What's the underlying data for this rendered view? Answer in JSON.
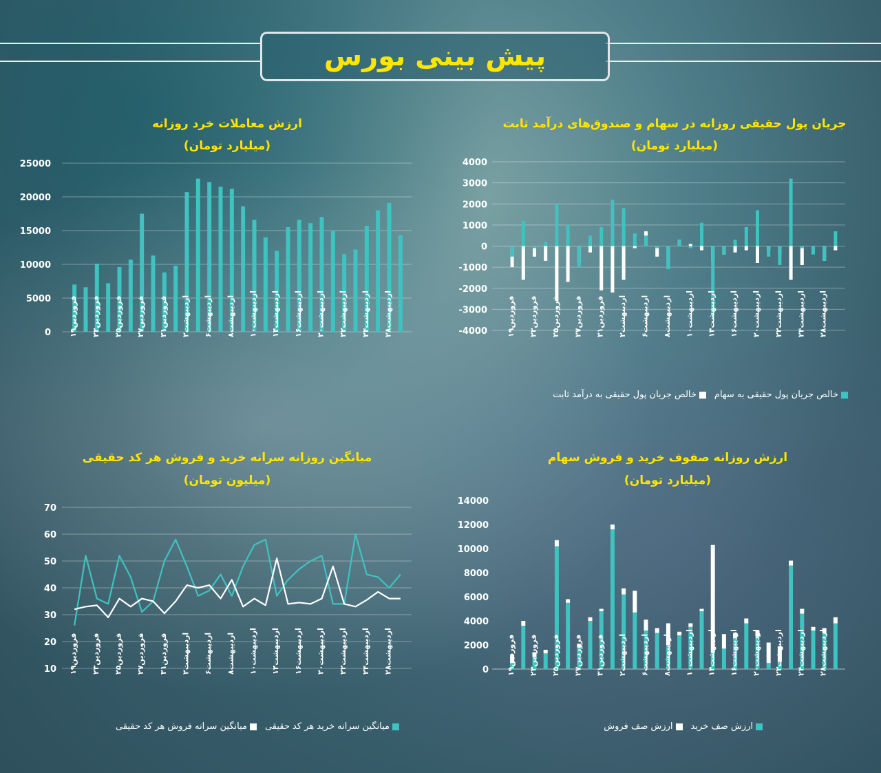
{
  "header": {
    "title": "پیش بینی بورس"
  },
  "colors": {
    "teal": "#3fc3c0",
    "white": "#ffffff",
    "title": "#ffe600"
  },
  "x_labels": [
    "فروردین۱۹",
    "فروردین۲۳",
    "فروردین۲۵",
    "فروردین۲۷",
    "فروردین۳۱",
    "اردیبهشت۲",
    "اردیبهشت۶",
    "اردیبهشت۸",
    "اردیبهشت۱۰",
    "اردیبهشت۱۴",
    "اردیبهشت۱۶",
    "اردیبهشت۲۰",
    "اردیبهشت۲۲",
    "اردیبهشت۲۴",
    "اردیبهشت۲۸"
  ],
  "chart_data": [
    {
      "id": "retail",
      "type": "bar",
      "title": "ارزش معاملات خرد روزانه",
      "subtitle": "(میلیارد تومان)",
      "ylim": [
        0,
        25000
      ],
      "yticks": [
        "0",
        "5000",
        "10000",
        "15000",
        "20000",
        "25000"
      ],
      "grid": true,
      "series": [
        {
          "name": "",
          "values": [
            7000,
            6600,
            10100,
            7200,
            9600,
            10700,
            17500,
            11300,
            8800,
            9800,
            20700,
            22700,
            22200,
            21500,
            21200,
            18600,
            16600,
            14000,
            12000,
            15500,
            16600,
            16100,
            17000,
            14900,
            11500,
            12200,
            15700,
            18000,
            19100,
            14300
          ]
        }
      ]
    },
    {
      "id": "flow",
      "type": "bar",
      "title": "جریان پول حقیقی روزانه در سهام و صندوق‌های درآمد ثابت",
      "subtitle": "(میلیارد تومان)",
      "ylim": [
        -4000,
        4000
      ],
      "yticks": [
        "-4000",
        "-3000",
        "-2000",
        "-1000",
        "0",
        "1000",
        "2000",
        "3000",
        "4000"
      ],
      "grid": true,
      "legend_position": "bottom",
      "series": [
        {
          "name": "خالص جریان پول حقیقی به سهام",
          "values": [
            -500,
            1200,
            -100,
            200,
            2000,
            1000,
            -1000,
            500,
            900,
            2200,
            1800,
            600,
            500,
            -100,
            -1100,
            300,
            -100,
            1100,
            -3300,
            -400,
            300,
            900,
            1700,
            -500,
            -900,
            3200,
            -100,
            -400,
            -700,
            700
          ]
        },
        {
          "name": "خالص جریان پول حقیقی به درآمد ثابت",
          "values": [
            -1000,
            -1600,
            -500,
            -700,
            -2600,
            -1700,
            -800,
            -300,
            -2100,
            -2200,
            -1600,
            -100,
            700,
            -500,
            -1000,
            300,
            100,
            -200,
            -700,
            -400,
            -300,
            -200,
            -800,
            -200,
            -400,
            -1600,
            -900,
            -100,
            -700,
            -200
          ]
        }
      ]
    },
    {
      "id": "per_capita",
      "type": "line",
      "title": "میانگین روزانه سرانه خرید و فروش هر کد حقیقی",
      "subtitle": "(میلیون تومان)",
      "ylim": [
        10,
        70
      ],
      "yticks": [
        "10",
        "20",
        "30",
        "40",
        "50",
        "60",
        "70"
      ],
      "grid": true,
      "legend_position": "bottom",
      "series": [
        {
          "name": "میانگین سرانه خرید هر کد حقیقی",
          "values": [
            26,
            52,
            36,
            34,
            52,
            44,
            31,
            35,
            50,
            58,
            48,
            37,
            39,
            45,
            37,
            48,
            56,
            58,
            37,
            43,
            47,
            50,
            52,
            34,
            34,
            60,
            45,
            44,
            40,
            45
          ]
        },
        {
          "name": "میانگین سرانه فروش هر کد حقیقی",
          "values": [
            32,
            33,
            33.5,
            29,
            36,
            33,
            36,
            35,
            30.5,
            35,
            41,
            40,
            41,
            36,
            43,
            33,
            36,
            33.5,
            51,
            34,
            34.5,
            34,
            36,
            48,
            34,
            33,
            35.5,
            38.5,
            36,
            36
          ]
        }
      ]
    },
    {
      "id": "queues",
      "type": "bar",
      "title": "ارزش روزانه صفوف خرید و فروش سهام",
      "subtitle": "(میلیارد تومان)",
      "ylim": [
        0,
        14000
      ],
      "yticks": [
        "0",
        "2000",
        "4000",
        "6000",
        "8000",
        "10000",
        "12000",
        "14000"
      ],
      "grid": false,
      "legend_position": "bottom",
      "series": [
        {
          "name": "ارزش صف خرید",
          "values": [
            500,
            3600,
            1000,
            1300,
            10200,
            5500,
            1800,
            4000,
            4800,
            11600,
            6200,
            4700,
            3200,
            3000,
            2000,
            2800,
            3500,
            4800,
            1400,
            1700,
            2600,
            3800,
            2700,
            500,
            600,
            8600,
            4600,
            3200,
            3000,
            3800
          ]
        },
        {
          "name": "ارزش صف فروش",
          "values": [
            700,
            400,
            400,
            300,
            500,
            300,
            300,
            300,
            200,
            400,
            500,
            1800,
            900,
            400,
            1800,
            300,
            300,
            200,
            8900,
            1200,
            400,
            400,
            500,
            1700,
            1300,
            400,
            400,
            300,
            400,
            500
          ]
        }
      ]
    }
  ]
}
